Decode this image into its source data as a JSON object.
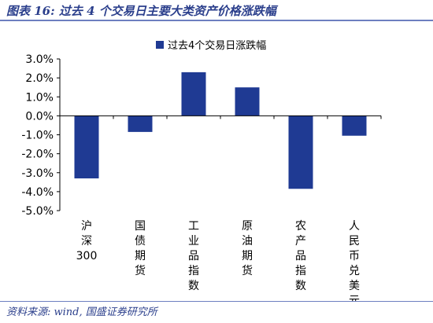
{
  "header": {
    "title": "图表 16:  过去 4 个交易日主要大类资产价格涨跌幅"
  },
  "footer": {
    "source": "资料来源: wind, 国盛证券研究所"
  },
  "chart_data": {
    "type": "bar",
    "title": "",
    "xlabel": "",
    "ylabel": "",
    "categories": [
      "沪深300",
      "国债期货",
      "工业品指数",
      "原油期货",
      "农产品指数",
      "人民币兑美元"
    ],
    "series": [
      {
        "name": "过去4个交易日涨跌幅",
        "values": [
          -3.3,
          -0.85,
          2.3,
          1.5,
          -3.85,
          -1.05
        ],
        "color": "#1f3a93"
      }
    ],
    "ylim": [
      -5.0,
      3.0
    ],
    "yticks": [
      3.0,
      2.0,
      1.0,
      0.0,
      -1.0,
      -2.0,
      -3.0,
      -4.0,
      -5.0
    ],
    "ytick_labels": [
      "3.0%",
      "2.0%",
      "1.0%",
      "0.0%",
      "-1.0%",
      "-2.0%",
      "-3.0%",
      "-4.0%",
      "-5.0%"
    ],
    "grid": false,
    "legend_position": "top-center"
  }
}
